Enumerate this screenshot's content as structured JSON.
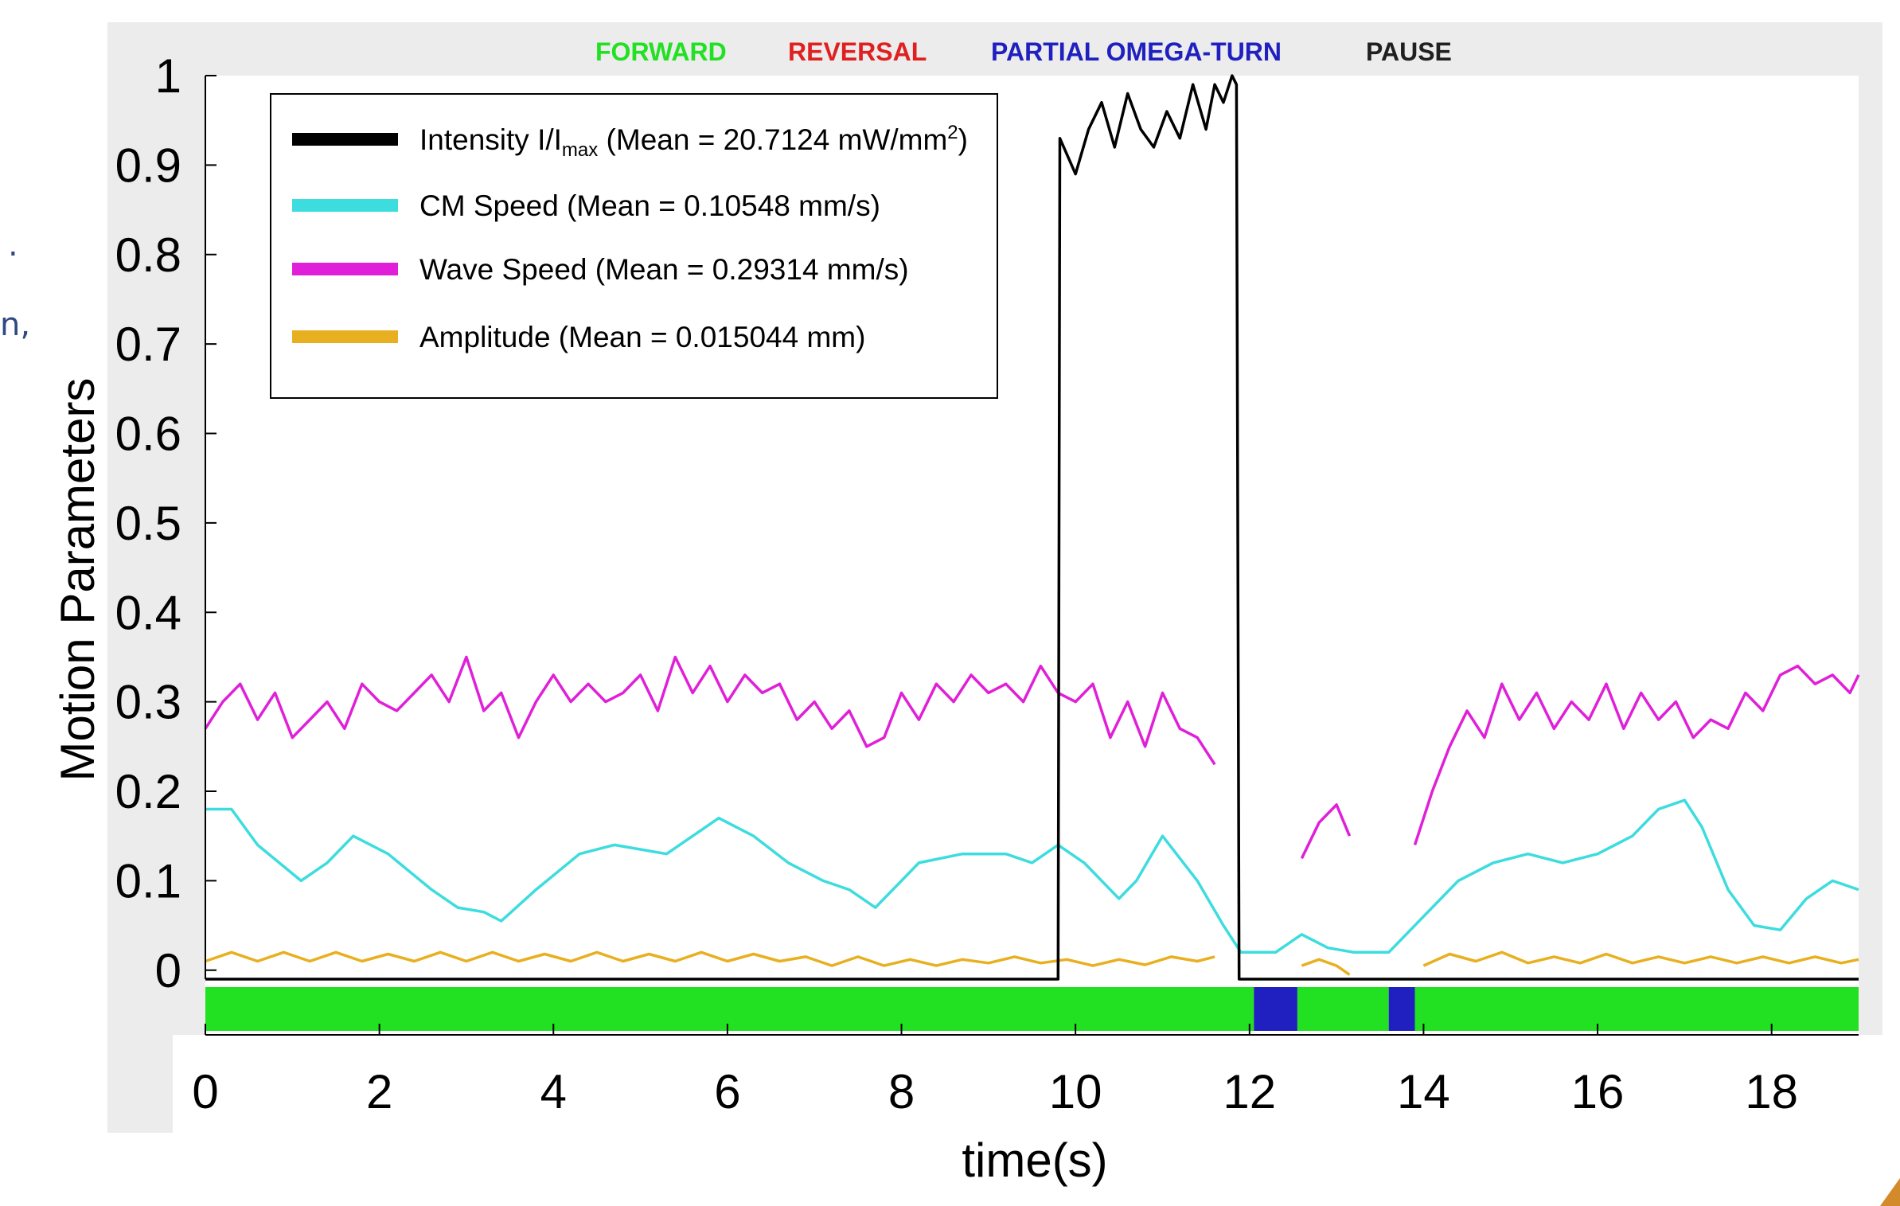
{
  "side_fragments": [
    ".",
    "n,"
  ],
  "chart_data": {
    "type": "line",
    "title": "",
    "xlabel": "time(s)",
    "ylabel": "Motion Parameters",
    "xlim": [
      0,
      19
    ],
    "ylim": [
      -0.01,
      1
    ],
    "x_ticks": [
      0,
      2,
      4,
      6,
      8,
      10,
      12,
      14,
      16,
      18
    ],
    "y_ticks": [
      0,
      0.1,
      0.2,
      0.3,
      0.4,
      0.5,
      0.6,
      0.7,
      0.8,
      0.9,
      1
    ],
    "grid": false,
    "legend_position": "top-left",
    "series": [
      {
        "name": "Intensity I/Imax (Mean = 20.7124 mW/mm²)",
        "legend": {
          "main": "Intensity I/I",
          "sub": "max",
          "rest": " (Mean = 20.7124 mW/mm",
          "sup": "2",
          "end": ")"
        },
        "color": "#000000",
        "segments": [
          [
            [
              0,
              -0.01
            ],
            [
              9.8,
              -0.01
            ],
            [
              9.82,
              0.93
            ],
            [
              10.0,
              0.89
            ],
            [
              10.15,
              0.94
            ],
            [
              10.3,
              0.97
            ],
            [
              10.45,
              0.92
            ],
            [
              10.6,
              0.98
            ],
            [
              10.75,
              0.94
            ],
            [
              10.9,
              0.92
            ],
            [
              11.05,
              0.96
            ],
            [
              11.2,
              0.93
            ],
            [
              11.35,
              0.99
            ],
            [
              11.5,
              0.94
            ],
            [
              11.6,
              0.99
            ],
            [
              11.7,
              0.97
            ],
            [
              11.8,
              1.0
            ],
            [
              11.85,
              0.99
            ],
            [
              11.88,
              -0.01
            ],
            [
              19,
              -0.01
            ]
          ]
        ]
      },
      {
        "name": "CM Speed (Mean = 0.10548 mm/s)",
        "color": "#3ddcde",
        "segments": [
          [
            [
              0,
              0.18
            ],
            [
              0.3,
              0.18
            ],
            [
              0.6,
              0.14
            ],
            [
              1.1,
              0.1
            ],
            [
              1.4,
              0.12
            ],
            [
              1.7,
              0.15
            ],
            [
              2.1,
              0.13
            ],
            [
              2.6,
              0.09
            ],
            [
              2.9,
              0.07
            ],
            [
              3.2,
              0.065
            ],
            [
              3.4,
              0.055
            ],
            [
              3.8,
              0.09
            ],
            [
              4.3,
              0.13
            ],
            [
              4.7,
              0.14
            ],
            [
              5.3,
              0.13
            ],
            [
              5.9,
              0.17
            ],
            [
              6.3,
              0.15
            ],
            [
              6.7,
              0.12
            ],
            [
              7.1,
              0.1
            ],
            [
              7.4,
              0.09
            ],
            [
              7.7,
              0.07
            ],
            [
              8.2,
              0.12
            ],
            [
              8.7,
              0.13
            ],
            [
              9.2,
              0.13
            ],
            [
              9.5,
              0.12
            ],
            [
              9.8,
              0.14
            ],
            [
              10.1,
              0.12
            ],
            [
              10.5,
              0.08
            ],
            [
              10.7,
              0.1
            ],
            [
              11.0,
              0.15
            ],
            [
              11.4,
              0.1
            ],
            [
              11.7,
              0.05
            ],
            [
              11.9,
              0.02
            ],
            [
              12.3,
              0.02
            ],
            [
              12.6,
              0.04
            ],
            [
              12.9,
              0.025
            ],
            [
              13.2,
              0.02
            ],
            [
              13.6,
              0.02
            ],
            [
              14.0,
              0.06
            ],
            [
              14.4,
              0.1
            ],
            [
              14.8,
              0.12
            ],
            [
              15.2,
              0.13
            ],
            [
              15.6,
              0.12
            ],
            [
              16.0,
              0.13
            ],
            [
              16.4,
              0.15
            ],
            [
              16.7,
              0.18
            ],
            [
              17.0,
              0.19
            ],
            [
              17.2,
              0.16
            ],
            [
              17.5,
              0.09
            ],
            [
              17.8,
              0.05
            ],
            [
              18.1,
              0.045
            ],
            [
              18.4,
              0.08
            ],
            [
              18.7,
              0.1
            ],
            [
              19.0,
              0.09
            ]
          ]
        ]
      },
      {
        "name": "Wave Speed (Mean = 0.29314 mm/s)",
        "color": "#e020d8",
        "segments": [
          [
            [
              0,
              0.27
            ],
            [
              0.2,
              0.3
            ],
            [
              0.4,
              0.32
            ],
            [
              0.6,
              0.28
            ],
            [
              0.8,
              0.31
            ],
            [
              1.0,
              0.26
            ],
            [
              1.2,
              0.28
            ],
            [
              1.4,
              0.3
            ],
            [
              1.6,
              0.27
            ],
            [
              1.8,
              0.32
            ],
            [
              2.0,
              0.3
            ],
            [
              2.2,
              0.29
            ],
            [
              2.4,
              0.31
            ],
            [
              2.6,
              0.33
            ],
            [
              2.8,
              0.3
            ],
            [
              3.0,
              0.35
            ],
            [
              3.2,
              0.29
            ],
            [
              3.4,
              0.31
            ],
            [
              3.6,
              0.26
            ],
            [
              3.8,
              0.3
            ],
            [
              4.0,
              0.33
            ],
            [
              4.2,
              0.3
            ],
            [
              4.4,
              0.32
            ],
            [
              4.6,
              0.3
            ],
            [
              4.8,
              0.31
            ],
            [
              5.0,
              0.33
            ],
            [
              5.2,
              0.29
            ],
            [
              5.4,
              0.35
            ],
            [
              5.6,
              0.31
            ],
            [
              5.8,
              0.34
            ],
            [
              6.0,
              0.3
            ],
            [
              6.2,
              0.33
            ],
            [
              6.4,
              0.31
            ],
            [
              6.6,
              0.32
            ],
            [
              6.8,
              0.28
            ],
            [
              7.0,
              0.3
            ],
            [
              7.2,
              0.27
            ],
            [
              7.4,
              0.29
            ],
            [
              7.6,
              0.25
            ],
            [
              7.8,
              0.26
            ],
            [
              8.0,
              0.31
            ],
            [
              8.2,
              0.28
            ],
            [
              8.4,
              0.32
            ],
            [
              8.6,
              0.3
            ],
            [
              8.8,
              0.33
            ],
            [
              9.0,
              0.31
            ],
            [
              9.2,
              0.32
            ],
            [
              9.4,
              0.3
            ],
            [
              9.6,
              0.34
            ],
            [
              9.8,
              0.31
            ],
            [
              10.0,
              0.3
            ],
            [
              10.2,
              0.32
            ],
            [
              10.4,
              0.26
            ],
            [
              10.6,
              0.3
            ],
            [
              10.8,
              0.25
            ],
            [
              11.0,
              0.31
            ],
            [
              11.2,
              0.27
            ],
            [
              11.4,
              0.26
            ],
            [
              11.6,
              0.23
            ]
          ],
          [
            [
              12.6,
              0.125
            ],
            [
              12.8,
              0.165
            ],
            [
              13.0,
              0.185
            ],
            [
              13.15,
              0.15
            ]
          ],
          [
            [
              13.9,
              0.14
            ],
            [
              14.1,
              0.2
            ],
            [
              14.3,
              0.25
            ],
            [
              14.5,
              0.29
            ],
            [
              14.7,
              0.26
            ],
            [
              14.9,
              0.32
            ],
            [
              15.1,
              0.28
            ],
            [
              15.3,
              0.31
            ],
            [
              15.5,
              0.27
            ],
            [
              15.7,
              0.3
            ],
            [
              15.9,
              0.28
            ],
            [
              16.1,
              0.32
            ],
            [
              16.3,
              0.27
            ],
            [
              16.5,
              0.31
            ],
            [
              16.7,
              0.28
            ],
            [
              16.9,
              0.3
            ],
            [
              17.1,
              0.26
            ],
            [
              17.3,
              0.28
            ],
            [
              17.5,
              0.27
            ],
            [
              17.7,
              0.31
            ],
            [
              17.9,
              0.29
            ],
            [
              18.1,
              0.33
            ],
            [
              18.3,
              0.34
            ],
            [
              18.5,
              0.32
            ],
            [
              18.7,
              0.33
            ],
            [
              18.9,
              0.31
            ],
            [
              19.0,
              0.33
            ]
          ]
        ]
      },
      {
        "name": "Amplitude (Mean = 0.015044 mm)",
        "color": "#e8b020",
        "segments": [
          [
            [
              0,
              0.01
            ],
            [
              0.3,
              0.02
            ],
            [
              0.6,
              0.01
            ],
            [
              0.9,
              0.02
            ],
            [
              1.2,
              0.01
            ],
            [
              1.5,
              0.02
            ],
            [
              1.8,
              0.01
            ],
            [
              2.1,
              0.018
            ],
            [
              2.4,
              0.01
            ],
            [
              2.7,
              0.02
            ],
            [
              3.0,
              0.01
            ],
            [
              3.3,
              0.02
            ],
            [
              3.6,
              0.01
            ],
            [
              3.9,
              0.018
            ],
            [
              4.2,
              0.01
            ],
            [
              4.5,
              0.02
            ],
            [
              4.8,
              0.01
            ],
            [
              5.1,
              0.018
            ],
            [
              5.4,
              0.01
            ],
            [
              5.7,
              0.02
            ],
            [
              6.0,
              0.01
            ],
            [
              6.3,
              0.018
            ],
            [
              6.6,
              0.01
            ],
            [
              6.9,
              0.015
            ],
            [
              7.2,
              0.005
            ],
            [
              7.5,
              0.015
            ],
            [
              7.8,
              0.005
            ],
            [
              8.1,
              0.012
            ],
            [
              8.4,
              0.005
            ],
            [
              8.7,
              0.012
            ],
            [
              9.0,
              0.008
            ],
            [
              9.3,
              0.015
            ],
            [
              9.6,
              0.008
            ],
            [
              9.9,
              0.012
            ],
            [
              10.2,
              0.005
            ],
            [
              10.5,
              0.012
            ],
            [
              10.8,
              0.006
            ],
            [
              11.1,
              0.015
            ],
            [
              11.4,
              0.01
            ],
            [
              11.6,
              0.015
            ]
          ],
          [
            [
              12.6,
              0.005
            ],
            [
              12.8,
              0.012
            ],
            [
              13.0,
              0.005
            ],
            [
              13.15,
              -0.005
            ]
          ],
          [
            [
              14.0,
              0.005
            ],
            [
              14.3,
              0.018
            ],
            [
              14.6,
              0.01
            ],
            [
              14.9,
              0.02
            ],
            [
              15.2,
              0.008
            ],
            [
              15.5,
              0.015
            ],
            [
              15.8,
              0.008
            ],
            [
              16.1,
              0.018
            ],
            [
              16.4,
              0.008
            ],
            [
              16.7,
              0.015
            ],
            [
              17.0,
              0.008
            ],
            [
              17.3,
              0.015
            ],
            [
              17.6,
              0.008
            ],
            [
              17.9,
              0.015
            ],
            [
              18.2,
              0.008
            ],
            [
              18.5,
              0.015
            ],
            [
              18.8,
              0.008
            ],
            [
              19.0,
              0.012
            ]
          ]
        ]
      }
    ],
    "behavior_states": {
      "labels": [
        {
          "label": "FORWARD",
          "color": "#22e022"
        },
        {
          "label": "REVERSAL",
          "color": "#e02020"
        },
        {
          "label": "PARTIAL OMEGA-TURN",
          "color": "#2020c0"
        },
        {
          "label": "PAUSE",
          "color": "#202020"
        }
      ],
      "intervals": [
        {
          "state": "FORWARD",
          "start": 0,
          "end": 12.05
        },
        {
          "state": "PARTIAL OMEGA-TURN",
          "start": 12.05,
          "end": 12.55
        },
        {
          "state": "FORWARD",
          "start": 12.55,
          "end": 13.6
        },
        {
          "state": "PARTIAL OMEGA-TURN",
          "start": 13.6,
          "end": 13.9
        },
        {
          "state": "FORWARD",
          "start": 13.9,
          "end": 19
        }
      ]
    }
  }
}
